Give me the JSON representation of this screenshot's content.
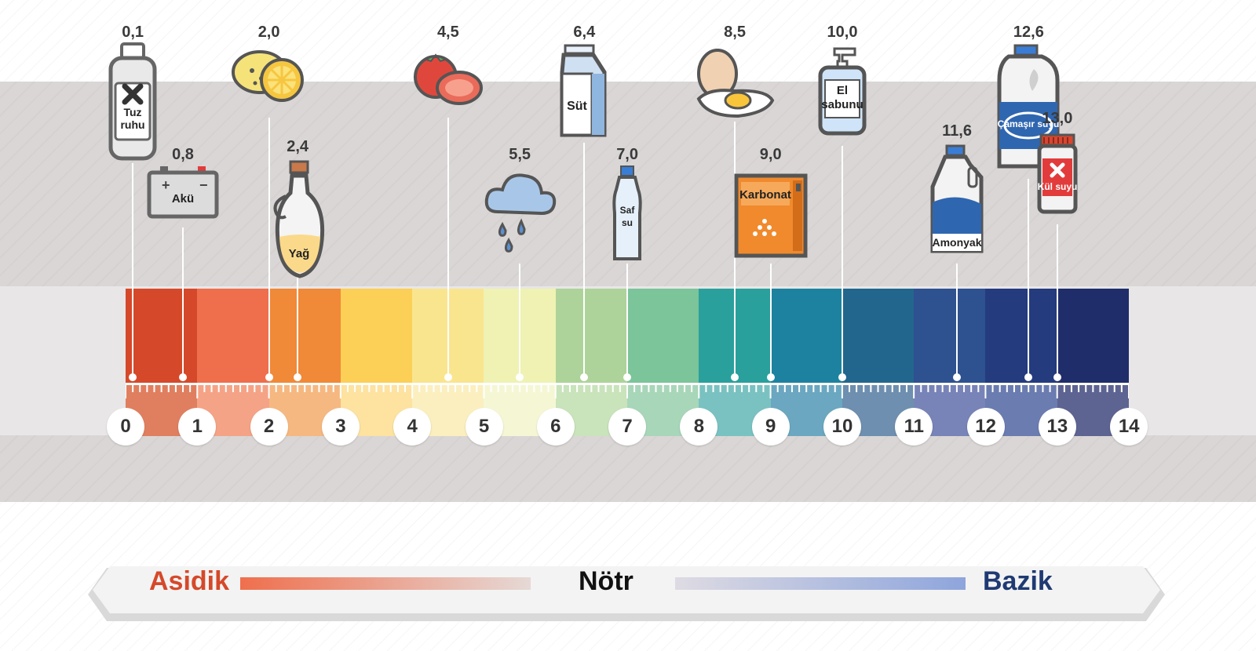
{
  "scale": {
    "numbers": [
      "0",
      "1",
      "2",
      "3",
      "4",
      "5",
      "6",
      "7",
      "8",
      "9",
      "10",
      "11",
      "12",
      "13",
      "14"
    ],
    "colors": [
      "#d5492a",
      "#ef6f4d",
      "#f08938",
      "#fccf56",
      "#fae58f",
      "#eff2b3",
      "#aed39a",
      "#7cc49a",
      "#2aa09d",
      "#1d829f",
      "#22668d",
      "#2e5190",
      "#243b7d",
      "#1f2d6a"
    ],
    "lower_colors": [
      "#e07f5f",
      "#f5a386",
      "#f6b881",
      "#fde2a0",
      "#fbefbf",
      "#f5f7d4",
      "#c9e3bb",
      "#a8d6b9",
      "#7ac2c1",
      "#6ba7c0",
      "#6e8faf",
      "#7884b8",
      "#6b7cb0",
      "#5d6491"
    ]
  },
  "items": [
    {
      "ph": 0.1,
      "value": "0,1",
      "label": "Tuz\nruhu",
      "icon": "hydrochloric-acid-bottle-icon"
    },
    {
      "ph": 0.8,
      "value": "0,8",
      "label": "Akü",
      "icon": "car-battery-icon"
    },
    {
      "ph": 2.0,
      "value": "2,0",
      "label": "",
      "icon": "lemon-icon"
    },
    {
      "ph": 2.4,
      "value": "2,4",
      "label": "Yağ",
      "icon": "oil-bottle-icon"
    },
    {
      "ph": 4.5,
      "value": "4,5",
      "label": "",
      "icon": "tomato-icon"
    },
    {
      "ph": 5.5,
      "value": "5,5",
      "label": "",
      "icon": "rain-cloud-icon"
    },
    {
      "ph": 6.4,
      "value": "6,4",
      "label": "Süt",
      "icon": "milk-carton-icon"
    },
    {
      "ph": 7.0,
      "value": "7,0",
      "label": "Saf\nsu",
      "icon": "water-bottle-icon"
    },
    {
      "ph": 8.5,
      "value": "8,5",
      "label": "",
      "icon": "egg-icon"
    },
    {
      "ph": 9.0,
      "value": "9,0",
      "label": "Karbonat",
      "icon": "baking-soda-box-icon"
    },
    {
      "ph": 10.0,
      "value": "10,0",
      "label": "El\nsabunu",
      "icon": "hand-soap-icon"
    },
    {
      "ph": 11.6,
      "value": "11,6",
      "label": "Amonyak",
      "icon": "ammonia-jug-icon"
    },
    {
      "ph": 12.6,
      "value": "12,6",
      "label": "Çamaşır suyu",
      "icon": "bleach-jug-icon"
    },
    {
      "ph": 13.0,
      "value": "13,0",
      "label": "Kül suyu",
      "icon": "lye-jar-icon"
    }
  ],
  "legend": {
    "acidic": "Asidik",
    "neutral": "Nötr",
    "basic": "Bazik",
    "acidic_color": "#d5492a",
    "basic_color": "#1f3a73"
  }
}
